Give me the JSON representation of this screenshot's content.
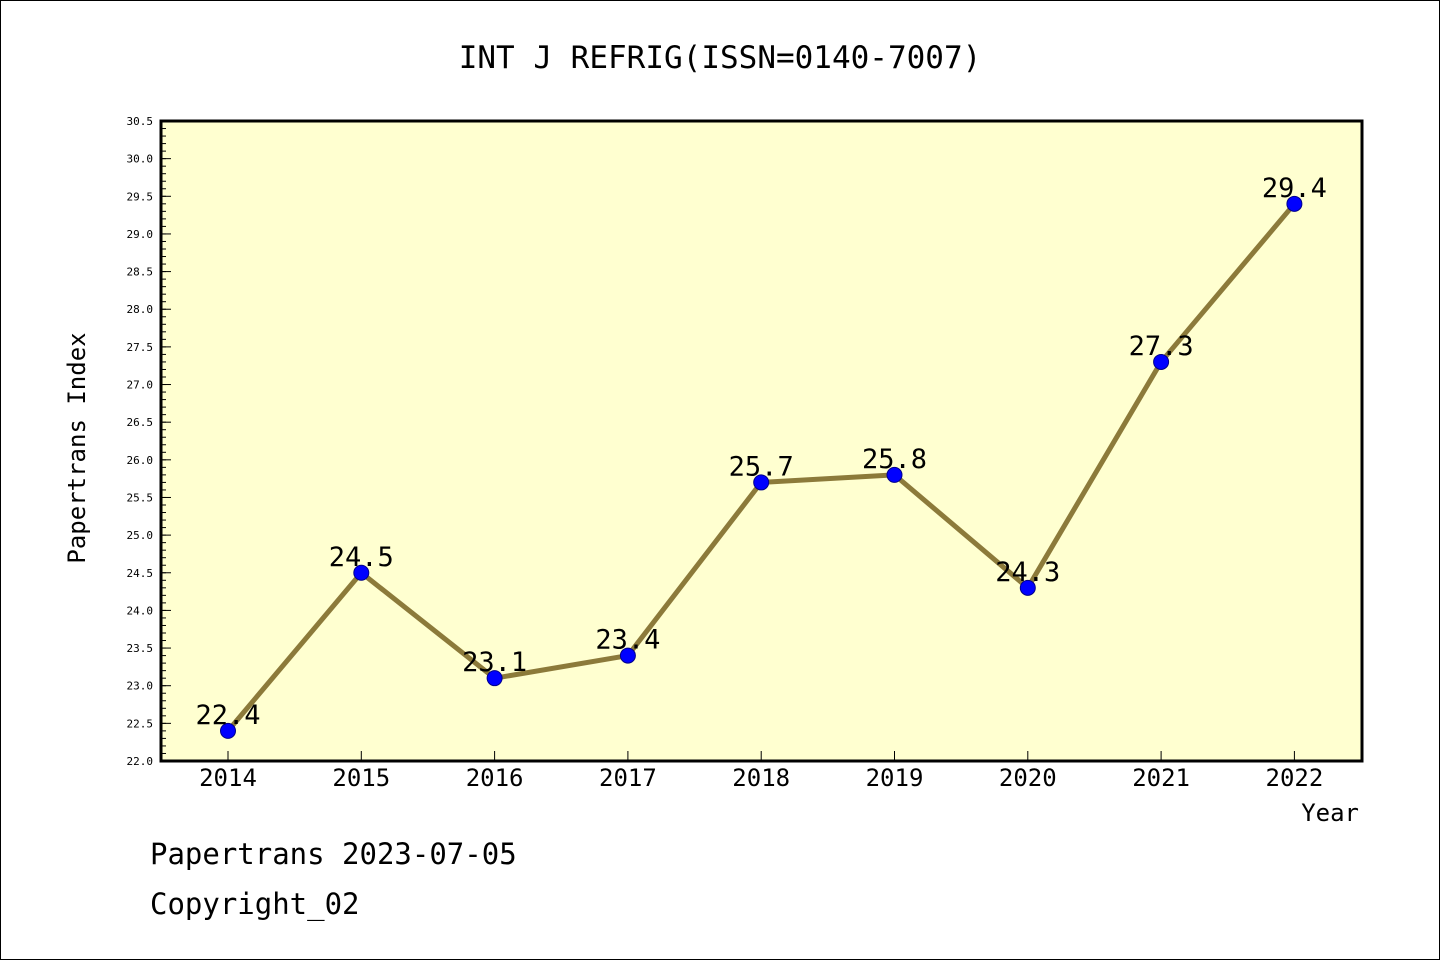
{
  "chart_data": {
    "type": "line",
    "title": "INT J REFRIG(ISSN=0140-7007)",
    "xlabel": "Year",
    "ylabel": "Papertrans Index",
    "categories": [
      "2014",
      "2015",
      "2016",
      "2017",
      "2018",
      "2019",
      "2020",
      "2021",
      "2022"
    ],
    "values": [
      22.4,
      24.5,
      23.1,
      23.4,
      25.7,
      25.8,
      24.3,
      27.3,
      29.4
    ],
    "data_labels": [
      "22.4",
      "24.5",
      "23.1",
      "23.4",
      "25.7",
      "25.8",
      "24.3",
      "27.3",
      "29.4"
    ],
    "ylim": [
      22.0,
      30.5
    ],
    "yticks": [
      "22.0",
      "22.5",
      "23.0",
      "23.5",
      "24.0",
      "24.5",
      "25.0",
      "25.5",
      "26.0",
      "26.5",
      "27.0",
      "27.5",
      "28.0",
      "28.5",
      "29.0",
      "29.5",
      "30.0",
      "30.5"
    ],
    "grid": false,
    "legend": "none",
    "colors": {
      "plot_background": "#ffffd0",
      "line": "#8c7a3a",
      "marker": "#0000ff",
      "frame": "#000000"
    }
  },
  "footer": {
    "line1": "Papertrans 2023-07-05",
    "line2": "Copyright_02"
  }
}
